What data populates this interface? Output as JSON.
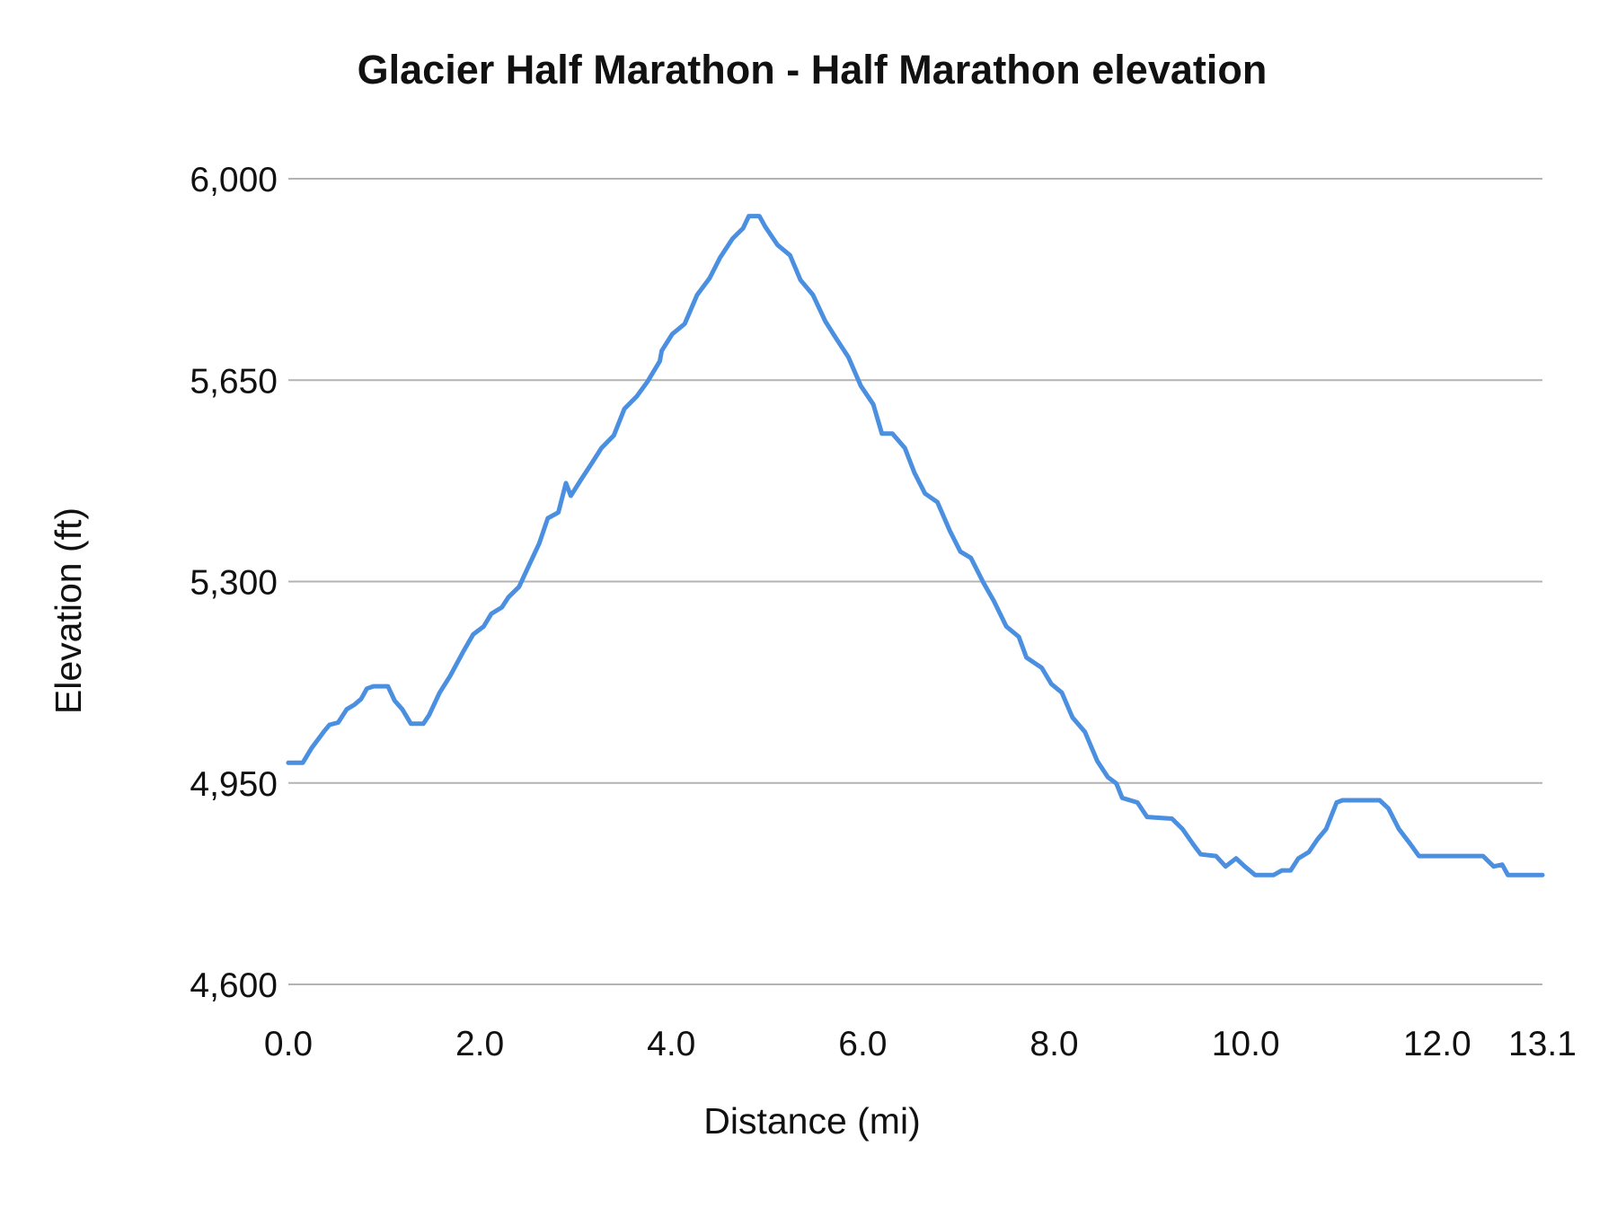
{
  "chart_data": {
    "type": "line",
    "title": "Glacier Half Marathon - Half Marathon elevation",
    "xlabel": "Distance (mi)",
    "ylabel": "Elevation (ft)",
    "xlim": [
      0,
      13.1
    ],
    "ylim": [
      4600,
      6000
    ],
    "xticks": [
      0,
      2,
      4,
      6,
      8,
      10,
      12,
      13.1
    ],
    "xtick_labels": [
      "0.0",
      "2.0",
      "4.0",
      "6.0",
      "8.0",
      "10.0",
      "12.0",
      "13.1"
    ],
    "yticks": [
      4600,
      4950,
      5300,
      5650,
      6000
    ],
    "ytick_labels": [
      "4,600",
      "4,950",
      "5,300",
      "5,650",
      "6,000"
    ],
    "grid": "horizontal",
    "line_color": "#4a8fe0",
    "grid_color": "#b3b3b3",
    "series": [
      {
        "x": [
          0,
          0.15,
          0.24,
          0.37,
          0.43,
          0.52,
          0.61,
          0.69,
          0.76,
          0.82,
          0.89,
          1.04,
          1.11,
          1.19,
          1.28,
          1.41,
          1.47,
          1.58,
          1.69,
          1.82,
          1.93,
          2.04,
          2.12,
          2.23,
          2.3,
          2.41,
          2.51,
          2.62,
          2.71,
          2.82,
          2.9,
          2.95,
          3.06,
          3.16,
          3.27,
          3.4,
          3.51,
          3.64,
          3.75,
          3.88,
          3.9,
          4.01,
          4.14,
          4.27,
          4.4,
          4.51,
          4.64,
          4.75,
          4.81,
          4.92,
          4.98,
          5.11,
          5.24,
          5.35,
          5.48,
          5.61,
          5.72,
          5.85,
          5.98,
          6.11,
          6.2,
          6.31,
          6.44,
          6.54,
          6.65,
          6.78,
          6.91,
          7.02,
          7.13,
          7.26,
          7.37,
          7.5,
          7.63,
          7.71,
          7.87,
          7.97,
          8.08,
          8.19,
          8.32,
          8.45,
          8.56,
          8.65,
          8.71,
          8.87,
          8.97,
          9.23,
          9.34,
          9.45,
          9.53,
          9.69,
          9.79,
          9.9,
          9.99,
          10.1,
          10.29,
          10.38,
          10.47,
          10.55,
          10.66,
          10.75,
          10.84,
          10.95,
          11.01,
          11.4,
          11.49,
          11.6,
          11.72,
          11.81,
          12.48,
          12.59,
          12.68,
          12.74,
          13.1
        ],
        "y": [
          4985,
          4985,
          5010,
          5039,
          5051,
          5055,
          5078,
          5086,
          5096,
          5114,
          5118,
          5118,
          5093,
          5078,
          5053,
          5053,
          5068,
          5107,
          5136,
          5176,
          5208,
          5222,
          5244,
          5255,
          5273,
          5291,
          5327,
          5366,
          5410,
          5420,
          5471,
          5449,
          5478,
          5503,
          5532,
          5554,
          5600,
          5622,
          5647,
          5683,
          5701,
          5730,
          5748,
          5798,
          5827,
          5863,
          5896,
          5914,
          5935,
          5935,
          5917,
          5885,
          5867,
          5824,
          5798,
          5752,
          5723,
          5690,
          5640,
          5608,
          5557,
          5557,
          5532,
          5489,
          5453,
          5438,
          5388,
          5352,
          5341,
          5298,
          5266,
          5222,
          5204,
          5168,
          5150,
          5122,
          5107,
          5064,
          5039,
          4988,
          4960,
          4949,
          4924,
          4916,
          4891,
          4888,
          4870,
          4844,
          4826,
          4823,
          4805,
          4819,
          4805,
          4790,
          4790,
          4798,
          4798,
          4819,
          4830,
          4852,
          4870,
          4916,
          4920,
          4920,
          4906,
          4870,
          4844,
          4823,
          4823,
          4805,
          4808,
          4790,
          4790
        ]
      }
    ]
  }
}
